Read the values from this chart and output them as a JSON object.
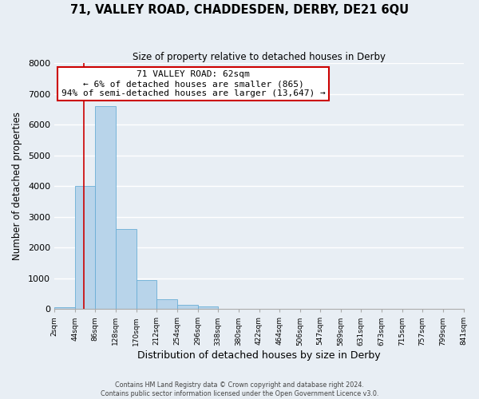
{
  "title": "71, VALLEY ROAD, CHADDESDEN, DERBY, DE21 6QU",
  "subtitle": "Size of property relative to detached houses in Derby",
  "xlabel": "Distribution of detached houses by size in Derby",
  "ylabel": "Number of detached properties",
  "bar_color": "#b8d4ea",
  "bar_edge_color": "#6aaed6",
  "background_color": "#e8eef4",
  "grid_color": "#ffffff",
  "bin_edges": [
    2,
    44,
    86,
    128,
    170,
    212,
    254,
    296,
    338,
    380,
    422,
    464,
    506,
    547,
    589,
    631,
    673,
    715,
    757,
    799,
    841
  ],
  "bin_labels": [
    "2sqm",
    "44sqm",
    "86sqm",
    "128sqm",
    "170sqm",
    "212sqm",
    "254sqm",
    "296sqm",
    "338sqm",
    "380sqm",
    "422sqm",
    "464sqm",
    "506sqm",
    "547sqm",
    "589sqm",
    "631sqm",
    "673sqm",
    "715sqm",
    "757sqm",
    "799sqm",
    "841sqm"
  ],
  "bar_heights": [
    50,
    4000,
    6600,
    2600,
    950,
    320,
    130,
    80,
    0,
    0,
    0,
    0,
    0,
    0,
    0,
    0,
    0,
    0,
    0,
    0
  ],
  "ylim": [
    0,
    8000
  ],
  "yticks": [
    0,
    1000,
    2000,
    3000,
    4000,
    5000,
    6000,
    7000,
    8000
  ],
  "property_line_x": 62,
  "property_line_color": "#cc0000",
  "annotation_line1": "71 VALLEY ROAD: 62sqm",
  "annotation_line2": "← 6% of detached houses are smaller (865)",
  "annotation_line3": "94% of semi-detached houses are larger (13,647) →",
  "annotation_box_color": "#ffffff",
  "annotation_box_edge_color": "#cc0000",
  "footer_line1": "Contains HM Land Registry data © Crown copyright and database right 2024.",
  "footer_line2": "Contains public sector information licensed under the Open Government Licence v3.0."
}
